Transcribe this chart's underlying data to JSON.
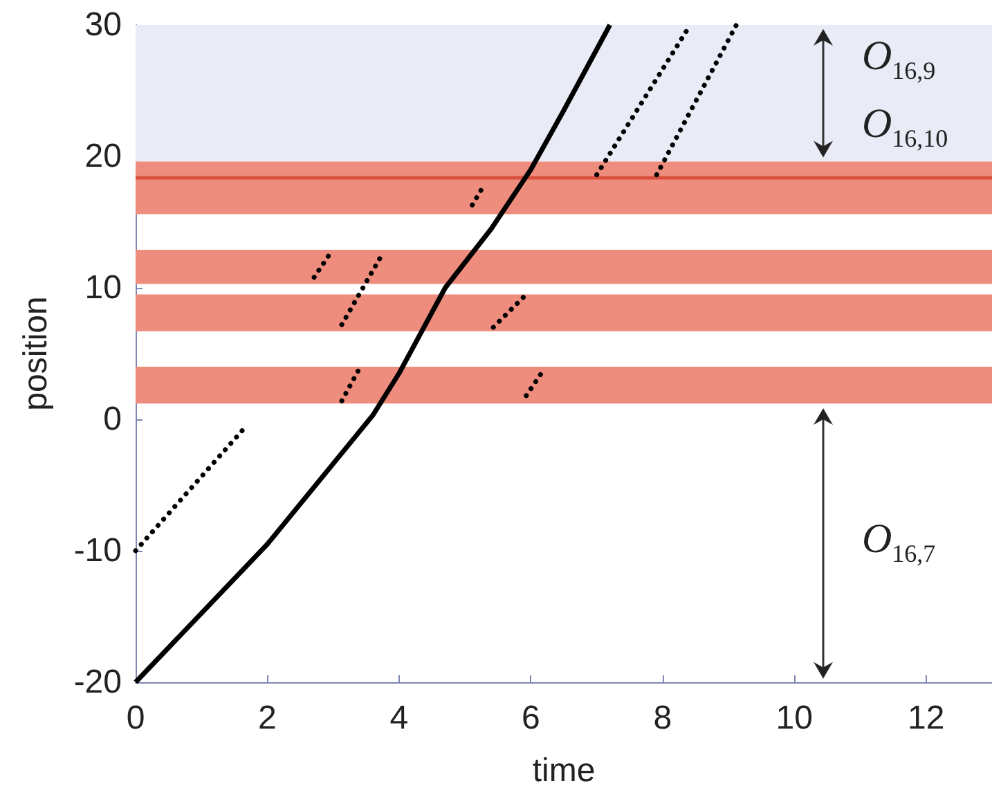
{
  "chart_data": {
    "type": "line",
    "xlabel": "time",
    "ylabel": "position",
    "xlim": [
      0,
      13
    ],
    "xticks": [
      0,
      2,
      4,
      6,
      8,
      10,
      12
    ],
    "ylim": [
      -20,
      30
    ],
    "yticks": [
      -20,
      -10,
      0,
      10,
      20,
      30
    ],
    "marker": "none",
    "series": [
      {
        "color": "#000000",
        "line_style": "solid",
        "x": [
          0,
          2,
          3.6,
          4,
          4.7,
          5.4,
          6,
          6.5,
          7.2
        ],
        "values": [
          -20,
          -9.5,
          0.3,
          3.5,
          10,
          14.5,
          19,
          23.5,
          30
        ]
      },
      {
        "color": "#000000",
        "line_style": "dotted",
        "x": [
          0,
          1.7
        ],
        "values": [
          -10,
          -0.4
        ]
      },
      {
        "color": "#000000",
        "line_style": "dotted",
        "x": [
          3.13,
          3.38
        ],
        "values": [
          1.4,
          3.7
        ]
      },
      {
        "color": "#000000",
        "line_style": "dotted",
        "x": [
          3.13,
          3.76
        ],
        "values": [
          7.2,
          12.7
        ]
      },
      {
        "color": "#000000",
        "line_style": "dotted",
        "x": [
          2.71,
          2.99
        ],
        "values": [
          10.8,
          12.9
        ]
      },
      {
        "color": "#000000",
        "line_style": "dotted",
        "x": [
          5.43,
          5.89
        ],
        "values": [
          7,
          9.3
        ]
      },
      {
        "color": "#000000",
        "line_style": "dotted",
        "x": [
          5.93,
          6.2
        ],
        "values": [
          1.8,
          3.8
        ]
      },
      {
        "color": "#000000",
        "line_style": "dotted",
        "x": [
          5.11,
          5.3
        ],
        "values": [
          16.3,
          17.9
        ]
      },
      {
        "color": "#000000",
        "line_style": "dotted",
        "x": [
          7,
          8.42
        ],
        "values": [
          18.6,
          30
        ]
      },
      {
        "color": "#000000",
        "line_style": "dotted",
        "x": [
          7.91,
          9.12
        ],
        "values": [
          18.6,
          30
        ]
      }
    ],
    "bands": [
      {
        "axis": "y",
        "from": 19.6,
        "to": 30,
        "color": "#e9ecf7"
      },
      {
        "axis": "y",
        "from": 15.6,
        "to": 19.6,
        "color": "#ee8d7d"
      },
      {
        "axis": "y",
        "from": 10.3,
        "to": 12.9,
        "color": "#ee8d7d"
      },
      {
        "axis": "y",
        "from": 6.7,
        "to": 9.5,
        "color": "#ee8d7d"
      },
      {
        "axis": "y",
        "from": 1.2,
        "to": 4,
        "color": "#ee8d7d"
      }
    ],
    "ref_lines": [
      {
        "axis": "y",
        "value": 18.4,
        "color": "#d9503c"
      }
    ],
    "annotations": [
      "O$_{16,9}$",
      "O$_{16,10}$",
      "O$_{16,7}$"
    ]
  }
}
